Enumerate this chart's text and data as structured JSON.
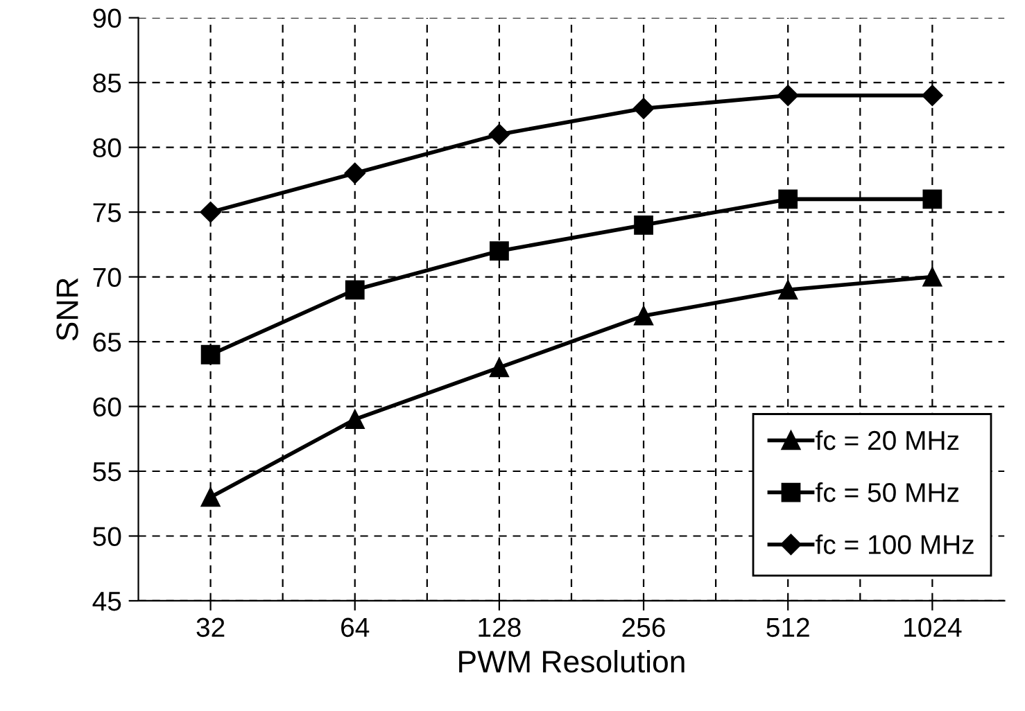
{
  "chart_data": {
    "type": "line",
    "xlabel": "PWM Resolution",
    "ylabel": "SNR",
    "categories": [
      "32",
      "64",
      "128",
      "256",
      "512",
      "1024"
    ],
    "series": [
      {
        "name": "fc = 20 MHz",
        "color": "#000000",
        "marker": "triangle",
        "values": [
          53,
          59,
          63,
          67,
          69,
          70
        ]
      },
      {
        "name": "fc = 50 MHz",
        "color": "#000000",
        "marker": "square",
        "values": [
          64,
          69,
          72,
          74,
          76,
          76
        ]
      },
      {
        "name": "fc = 100 MHz",
        "color": "#000000",
        "marker": "diamond",
        "values": [
          75,
          78,
          81,
          83,
          84,
          84
        ]
      }
    ],
    "ylim": [
      45,
      90
    ],
    "yticks": [
      45,
      50,
      55,
      60,
      65,
      70,
      75,
      80,
      85,
      90
    ],
    "grid": true,
    "legend": "bottom right",
    "line_style": "solid"
  }
}
